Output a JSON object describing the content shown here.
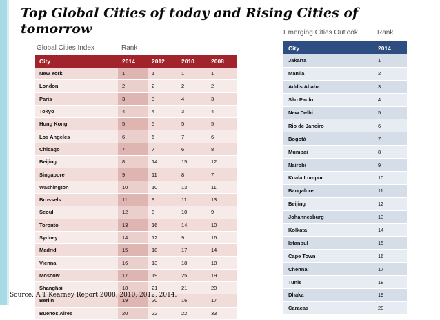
{
  "slide": {
    "title": "Top Global Cities of today and Rising Cities of tomorrow",
    "source": "Source: A T Kearney Report 2008, 2010, 2012, 2014."
  },
  "global_index": {
    "heading": "Global Cities Index",
    "rank_label": "Rank",
    "columns": [
      "City",
      "2014",
      "2012",
      "2010",
      "2008"
    ],
    "rows": [
      {
        "city": "New York",
        "r2014": "1",
        "r2012": "1",
        "r2010": "1",
        "r2008": "1"
      },
      {
        "city": "London",
        "r2014": "2",
        "r2012": "2",
        "r2010": "2",
        "r2008": "2"
      },
      {
        "city": "Paris",
        "r2014": "3",
        "r2012": "3",
        "r2010": "4",
        "r2008": "3"
      },
      {
        "city": "Tokyo",
        "r2014": "4",
        "r2012": "4",
        "r2010": "3",
        "r2008": "4"
      },
      {
        "city": "Hong Kong",
        "r2014": "5",
        "r2012": "5",
        "r2010": "5",
        "r2008": "5"
      },
      {
        "city": "Los Angeles",
        "r2014": "6",
        "r2012": "6",
        "r2010": "7",
        "r2008": "6"
      },
      {
        "city": "Chicago",
        "r2014": "7",
        "r2012": "7",
        "r2010": "6",
        "r2008": "8"
      },
      {
        "city": "Beijing",
        "r2014": "8",
        "r2012": "14",
        "r2010": "15",
        "r2008": "12"
      },
      {
        "city": "Singapore",
        "r2014": "9",
        "r2012": "11",
        "r2010": "8",
        "r2008": "7"
      },
      {
        "city": "Washington",
        "r2014": "10",
        "r2012": "10",
        "r2010": "13",
        "r2008": "11"
      },
      {
        "city": "Brussels",
        "r2014": "11",
        "r2012": "9",
        "r2010": "11",
        "r2008": "13"
      },
      {
        "city": "Seoul",
        "r2014": "12",
        "r2012": "8",
        "r2010": "10",
        "r2008": "9"
      },
      {
        "city": "Toronto",
        "r2014": "13",
        "r2012": "16",
        "r2010": "14",
        "r2008": "10"
      },
      {
        "city": "Sydney",
        "r2014": "14",
        "r2012": "12",
        "r2010": "9",
        "r2008": "16"
      },
      {
        "city": "Madrid",
        "r2014": "15",
        "r2012": "18",
        "r2010": "17",
        "r2008": "14"
      },
      {
        "city": "Vienna",
        "r2014": "16",
        "r2012": "13",
        "r2010": "18",
        "r2008": "18"
      },
      {
        "city": "Moscow",
        "r2014": "17",
        "r2012": "19",
        "r2010": "25",
        "r2008": "19"
      },
      {
        "city": "Shanghai",
        "r2014": "18",
        "r2012": "21",
        "r2010": "21",
        "r2008": "20"
      },
      {
        "city": "Berlin",
        "r2014": "19",
        "r2012": "20",
        "r2010": "16",
        "r2008": "17"
      },
      {
        "city": "Buenos Aires",
        "r2014": "20",
        "r2012": "22",
        "r2010": "22",
        "r2008": "33"
      }
    ]
  },
  "emerging_outlook": {
    "heading": "Emerging Cities Outlook",
    "rank_label": "Rank",
    "columns": [
      "City",
      "2014"
    ],
    "rows": [
      {
        "city": "Jakarta",
        "rank": "1"
      },
      {
        "city": "Manila",
        "rank": "2"
      },
      {
        "city": "Addis Ababa",
        "rank": "3"
      },
      {
        "city": "São Paulo",
        "rank": "4"
      },
      {
        "city": "New Delhi",
        "rank": "5"
      },
      {
        "city": "Rio de Janeiro",
        "rank": "6"
      },
      {
        "city": "Bogotá",
        "rank": "7"
      },
      {
        "city": "Mumbai",
        "rank": "8"
      },
      {
        "city": "Nairobi",
        "rank": "9"
      },
      {
        "city": "Kuala Lumpur",
        "rank": "10"
      },
      {
        "city": "Bangalore",
        "rank": "11"
      },
      {
        "city": "Beijing",
        "rank": "12"
      },
      {
        "city": "Johannesburg",
        "rank": "13"
      },
      {
        "city": "Kolkata",
        "rank": "14"
      },
      {
        "city": "Istanbul",
        "rank": "15"
      },
      {
        "city": "Cape Town",
        "rank": "16"
      },
      {
        "city": "Chennai",
        "rank": "17"
      },
      {
        "city": "Tunis",
        "rank": "18"
      },
      {
        "city": "Dhaka",
        "rank": "19"
      },
      {
        "city": "Caracas",
        "rank": "20"
      }
    ]
  }
}
